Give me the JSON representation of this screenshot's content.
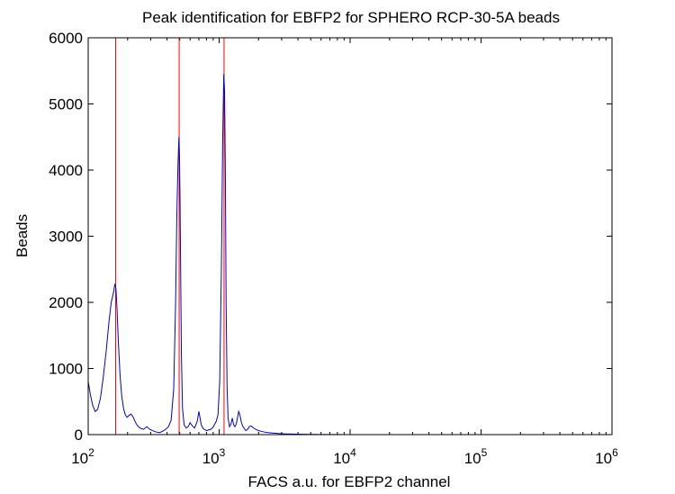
{
  "chart_data": {
    "type": "line",
    "title": "Peak identification for EBFP2 for SPHERO RCP-30-5A beads",
    "xlabel": "FACS a.u. for EBFP2 channel",
    "ylabel": "Beads",
    "xscale": "log",
    "xlim": [
      100,
      1000000
    ],
    "ylim": [
      0,
      6000
    ],
    "x_ticks": [
      {
        "value": 100,
        "base": "10",
        "exp": "2"
      },
      {
        "value": 1000,
        "base": "10",
        "exp": "3"
      },
      {
        "value": 10000,
        "base": "10",
        "exp": "4"
      },
      {
        "value": 100000,
        "base": "10",
        "exp": "5"
      },
      {
        "value": 1000000,
        "base": "10",
        "exp": "6"
      }
    ],
    "y_ticks": [
      "0",
      "1000",
      "2000",
      "3000",
      "4000",
      "5000",
      "6000"
    ],
    "grid": false,
    "series": [
      {
        "color": "#0000cc",
        "x": [
          100,
          104,
          108,
          113,
          118,
          124,
          130,
          137,
          144,
          150,
          156,
          160,
          163,
          166,
          170,
          175,
          180,
          186,
          192,
          198,
          205,
          212,
          220,
          228,
          235,
          245,
          255,
          265,
          280,
          295,
          310,
          330,
          350,
          370,
          390,
          410,
          430,
          450,
          465,
          475,
          485,
          493,
          498,
          503,
          508,
          515,
          525,
          540,
          560,
          580,
          600,
          625,
          650,
          680,
          700,
          715,
          730,
          750,
          770,
          800,
          830,
          860,
          890,
          920,
          950,
          980,
          1010,
          1040,
          1065,
          1085,
          1100,
          1115,
          1130,
          1150,
          1170,
          1200,
          1230,
          1260,
          1290,
          1320,
          1350,
          1380,
          1410,
          1440,
          1480,
          1520,
          1560,
          1600,
          1650,
          1700,
          1760,
          1830,
          1900,
          2000,
          2100,
          2200,
          2350,
          2500,
          2700,
          2900,
          3100,
          3400,
          3700,
          4000,
          4400,
          4800,
          5200,
          6000,
          8000,
          10000,
          20000,
          50000,
          100000,
          200000,
          500000,
          1000000
        ],
        "y": [
          800,
          600,
          450,
          350,
          380,
          550,
          850,
          1250,
          1700,
          2000,
          2150,
          2280,
          2200,
          1900,
          1400,
          900,
          600,
          400,
          300,
          260,
          290,
          310,
          270,
          200,
          150,
          110,
          90,
          80,
          120,
          80,
          60,
          40,
          30,
          50,
          80,
          120,
          220,
          700,
          2000,
          3300,
          4100,
          4500,
          4200,
          3500,
          2500,
          1200,
          400,
          150,
          100,
          120,
          180,
          130,
          100,
          200,
          350,
          250,
          150,
          100,
          80,
          60,
          70,
          80,
          100,
          150,
          200,
          300,
          800,
          2500,
          4500,
          5450,
          5200,
          4000,
          2000,
          700,
          250,
          120,
          160,
          250,
          150,
          120,
          160,
          250,
          350,
          300,
          180,
          120,
          90,
          60,
          80,
          120,
          130,
          100,
          80,
          60,
          50,
          40,
          30,
          25,
          20,
          15,
          12,
          10,
          8,
          6,
          5,
          4,
          3,
          2,
          1,
          0,
          0,
          0,
          0,
          0,
          0,
          0
        ]
      }
    ],
    "peak_lines": {
      "color": "#ff0000",
      "x": [
        162,
        495,
        1090
      ]
    }
  }
}
